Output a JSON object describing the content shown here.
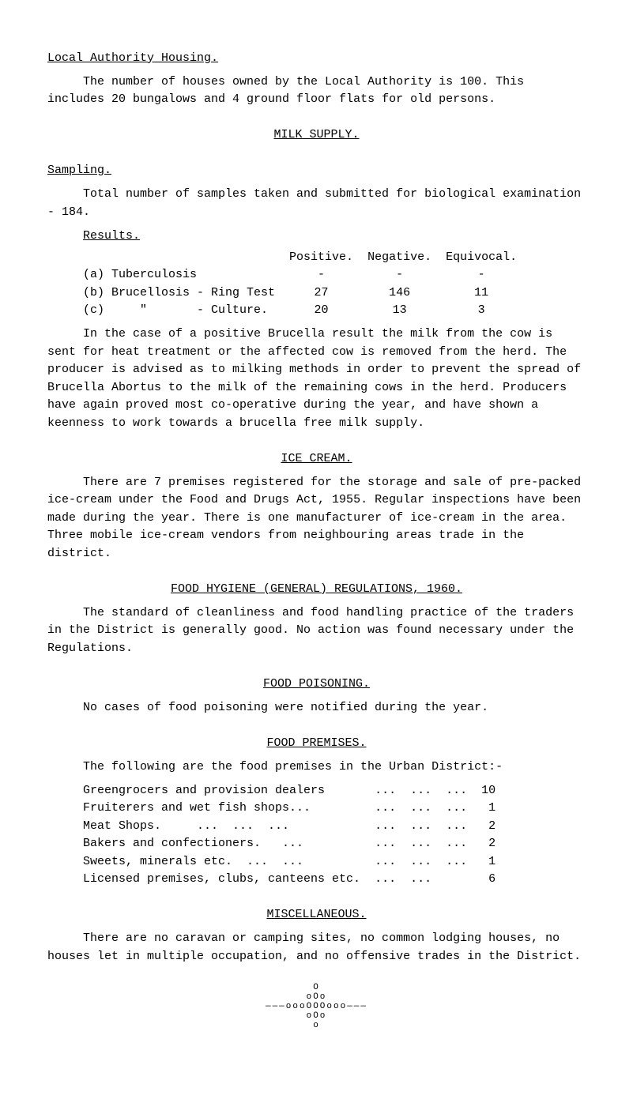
{
  "headings": {
    "local_authority_housing": "Local Authority Housing.",
    "milk_supply": "MILK SUPPLY.",
    "sampling": "Sampling.",
    "results": "Results.",
    "ice_cream": "ICE CREAM.",
    "food_hygiene": "FOOD HYGIENE (GENERAL) REGULATIONS, 1960.",
    "food_poisoning": "FOOD POISONING.",
    "food_premises": "FOOD PREMISES.",
    "miscellaneous": "MISCELLANEOUS."
  },
  "paragraphs": {
    "housing_intro": "The number of houses owned by the Local Authority is 100. This includes 20 bungalows and 4 ground floor flats for old persons.",
    "sampling_intro": "Total number of samples taken and submitted for biological examination - 184.",
    "brucella": "In the case of a positive Brucella result the milk from the cow is sent for heat treatment or the affected cow is removed from the herd. The producer is advised as to milking methods in order to prevent the spread of Brucella Abortus to the milk of the remaining cows in the herd. Producers have again proved most co-operative during the year, and have shown a keenness to work towards a brucella free milk supply.",
    "ice_cream_para": "There are 7 premises registered for the storage and sale of pre-packed ice-cream under the Food and Drugs Act, 1955. Regular inspections have been made during the year. There is one manufacturer of ice-cream in the area. Three mobile ice-cream vendors from neighbouring areas trade in the district.",
    "food_hygiene_para": "The standard of cleanliness and food handling practice of the traders in the District is generally good. No action was found necessary under the Regulations.",
    "food_poisoning_para": "No cases of food poisoning were notified during the year.",
    "food_premises_intro": "The following are the food premises in the Urban District:-",
    "misc_para": "There are no caravan or camping sites, no common lodging houses, no houses let in multiple occupation, and no offensive trades in the District."
  },
  "results_table": {
    "headers": {
      "positive": "Positive.",
      "negative": "Negative.",
      "equivocal": "Equivocal."
    },
    "rows": {
      "a": {
        "label": "(a) Tuberculosis",
        "positive": "-",
        "negative": "-",
        "equivocal": "-"
      },
      "b": {
        "label": "(b) Brucellosis - Ring Test",
        "positive": "27",
        "negative": "146",
        "equivocal": "11"
      },
      "c": {
        "label": "(c)     \"       - Culture.",
        "positive": "20",
        "negative": "13",
        "equivocal": "3"
      }
    }
  },
  "premises": {
    "rows": {
      "greengrocers": {
        "label": "Greengrocers and provision dealers",
        "dots": "...  ...  ...",
        "value": "10"
      },
      "fruiterers": {
        "label": "Fruiterers and wet fish shops...",
        "dots": "...  ...  ...",
        "value": "1"
      },
      "meat": {
        "label": "Meat Shops.     ...  ...  ...",
        "dots": "...  ...  ...",
        "value": "2"
      },
      "bakers": {
        "label": "Bakers and confectioners.   ...",
        "dots": "...  ...  ...",
        "value": "2"
      },
      "sweets": {
        "label": "Sweets, minerals etc.  ...  ...",
        "dots": "...  ...  ...",
        "value": "1"
      },
      "licensed": {
        "label": "Licensed premises, clubs, canteens etc.",
        "dots": "...  ...",
        "value": "6"
      }
    }
  },
  "ornament": {
    "l1": "O",
    "l2": "oOo",
    "l3": "———oooOOOooo———",
    "l4": "oOo",
    "l5": "o"
  }
}
